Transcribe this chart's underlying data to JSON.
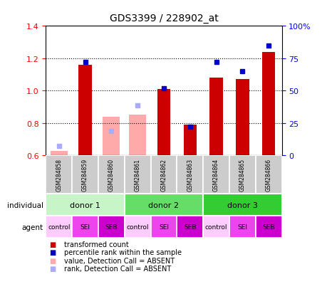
{
  "title": "GDS3399 / 228902_at",
  "samples": [
    "GSM284858",
    "GSM284859",
    "GSM284860",
    "GSM284861",
    "GSM284862",
    "GSM284863",
    "GSM284864",
    "GSM284865",
    "GSM284866"
  ],
  "transformed_count": [
    null,
    1.16,
    null,
    null,
    1.01,
    0.79,
    1.08,
    1.07,
    1.24
  ],
  "percentile_rank": [
    null,
    72,
    null,
    null,
    52,
    22,
    72,
    65,
    85
  ],
  "absent_value": [
    0.63,
    null,
    0.84,
    0.85,
    null,
    null,
    null,
    null,
    null
  ],
  "absent_rank_left": [
    0.66,
    null,
    0.75,
    0.91,
    null,
    null,
    null,
    null,
    null
  ],
  "ylim_left": [
    0.6,
    1.4
  ],
  "ylim_right": [
    0,
    100
  ],
  "yticks_left": [
    0.6,
    0.8,
    1.0,
    1.2,
    1.4
  ],
  "yticks_right": [
    0,
    25,
    50,
    75,
    100
  ],
  "ytick_labels_right": [
    "0",
    "25",
    "50",
    "75",
    "100%"
  ],
  "donors": [
    {
      "label": "donor 1",
      "cols": [
        0,
        1,
        2
      ],
      "color": "#c8f5c8"
    },
    {
      "label": "donor 2",
      "cols": [
        3,
        4,
        5
      ],
      "color": "#66dd66"
    },
    {
      "label": "donor 3",
      "cols": [
        6,
        7,
        8
      ],
      "color": "#33cc33"
    }
  ],
  "agents": [
    "control",
    "SEI",
    "SEB",
    "control",
    "SEI",
    "SEB",
    "control",
    "SEI",
    "SEB"
  ],
  "agent_colors": [
    "#ffccff",
    "#ee44ee",
    "#cc00cc",
    "#ffccff",
    "#ee44ee",
    "#cc00cc",
    "#ffccff",
    "#ee44ee",
    "#cc00cc"
  ],
  "bar_color_red": "#cc0000",
  "bar_color_blue": "#0000cc",
  "bar_color_pink": "#ffaaaa",
  "bar_color_lightblue": "#aaaaff",
  "legend_items": [
    {
      "label": "transformed count",
      "color": "#cc0000"
    },
    {
      "label": "percentile rank within the sample",
      "color": "#0000cc"
    },
    {
      "label": "value, Detection Call = ABSENT",
      "color": "#ffaaaa"
    },
    {
      "label": "rank, Detection Call = ABSENT",
      "color": "#aaaaff"
    }
  ]
}
